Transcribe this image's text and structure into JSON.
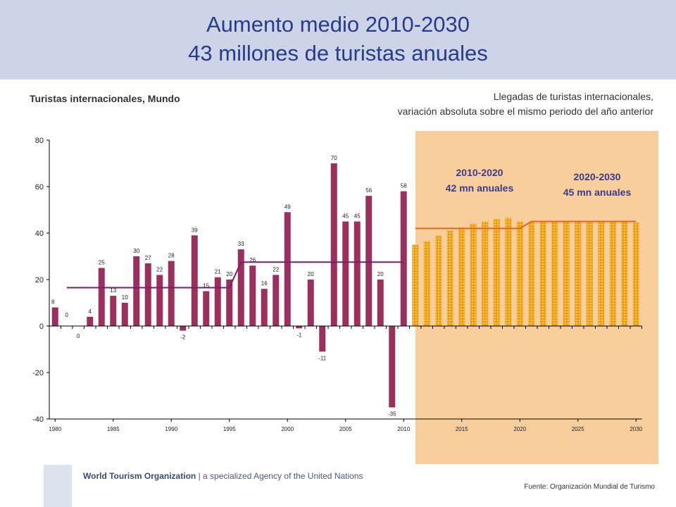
{
  "header": {
    "title_line1": "Aumento medio 2010-2030",
    "title_line2": "43 millones de turistas anuales"
  },
  "subtitle": "Turistas internacionales, Mundo",
  "caption_line1": "Llegadas de turistas internacionales,",
  "caption_line2": "variación absoluta sobre el mismo periodo del año anterior",
  "footer": {
    "org_name": "World Tourism Organization",
    "org_tagline": "| a specialized Agency of the United Nations",
    "source": "Fuente: Organización Mundial de Turismo"
  },
  "colors": {
    "header_bg": "#cdd4e8",
    "title": "#2a3a8c",
    "bar": "#9b2f5e",
    "trend_line": "#7a1e6e",
    "forecast_bg": "#f8cf9c",
    "forecast_bar": "#f2a81d",
    "forecast_line": "#e8641a",
    "annotation": "#3a3a8c"
  },
  "chart_data": {
    "type": "bar",
    "ylim": [
      -40,
      80
    ],
    "yticks": [
      -40,
      -20,
      0,
      20,
      40,
      60,
      80
    ],
    "xticks": [
      1980,
      1985,
      1990,
      1995,
      2000,
      2005,
      2010,
      2015,
      2020,
      2025,
      2030
    ],
    "historical": {
      "x": [
        1980,
        1981,
        1982,
        1983,
        1984,
        1985,
        1986,
        1987,
        1988,
        1989,
        1990,
        1991,
        1992,
        1993,
        1994,
        1995,
        1996,
        1997,
        1998,
        1999,
        2000,
        2001,
        2002,
        2003,
        2004,
        2005,
        2006,
        2007,
        2008,
        2009,
        2010
      ],
      "values": [
        8,
        0,
        0,
        4,
        25,
        13,
        10,
        30,
        27,
        22,
        28,
        -2,
        39,
        15,
        21,
        20,
        33,
        26,
        16,
        22,
        49,
        -1,
        20,
        -11,
        70,
        45,
        45,
        56,
        20,
        -35,
        58
      ],
      "labels": [
        "8",
        "0",
        "0",
        "4",
        "25",
        "13",
        "10",
        "30",
        "27",
        "22",
        "28",
        "-2",
        "39",
        "15",
        "21",
        "20",
        "33",
        "26",
        "16",
        "22",
        "49",
        "-1",
        "20",
        "-11",
        "70",
        "45",
        "45",
        "56",
        "20",
        "-35",
        "58"
      ]
    },
    "forecast": {
      "x": [
        2011,
        2012,
        2013,
        2014,
        2015,
        2016,
        2017,
        2018,
        2019,
        2020,
        2021,
        2022,
        2023,
        2024,
        2025,
        2026,
        2027,
        2028,
        2029,
        2030
      ],
      "values": [
        35,
        36.5,
        39,
        41,
        42.5,
        44,
        45,
        46,
        46.5,
        45,
        45,
        45,
        45,
        45,
        45,
        45,
        45,
        45,
        45,
        44.5
      ]
    },
    "average_lines": [
      {
        "from": 1981,
        "to": 1995,
        "value": 16.5
      },
      {
        "from": 1996,
        "to": 2010,
        "value": 27.5
      },
      {
        "from": 2011,
        "to": 2020,
        "value": 42
      },
      {
        "from": 2021,
        "to": 2030,
        "value": 45
      }
    ],
    "annotations": [
      {
        "line1": "2010-2020",
        "line2": "42 mn anuales"
      },
      {
        "line1": "2020-2030",
        "line2": "45 mn anuales"
      }
    ]
  }
}
